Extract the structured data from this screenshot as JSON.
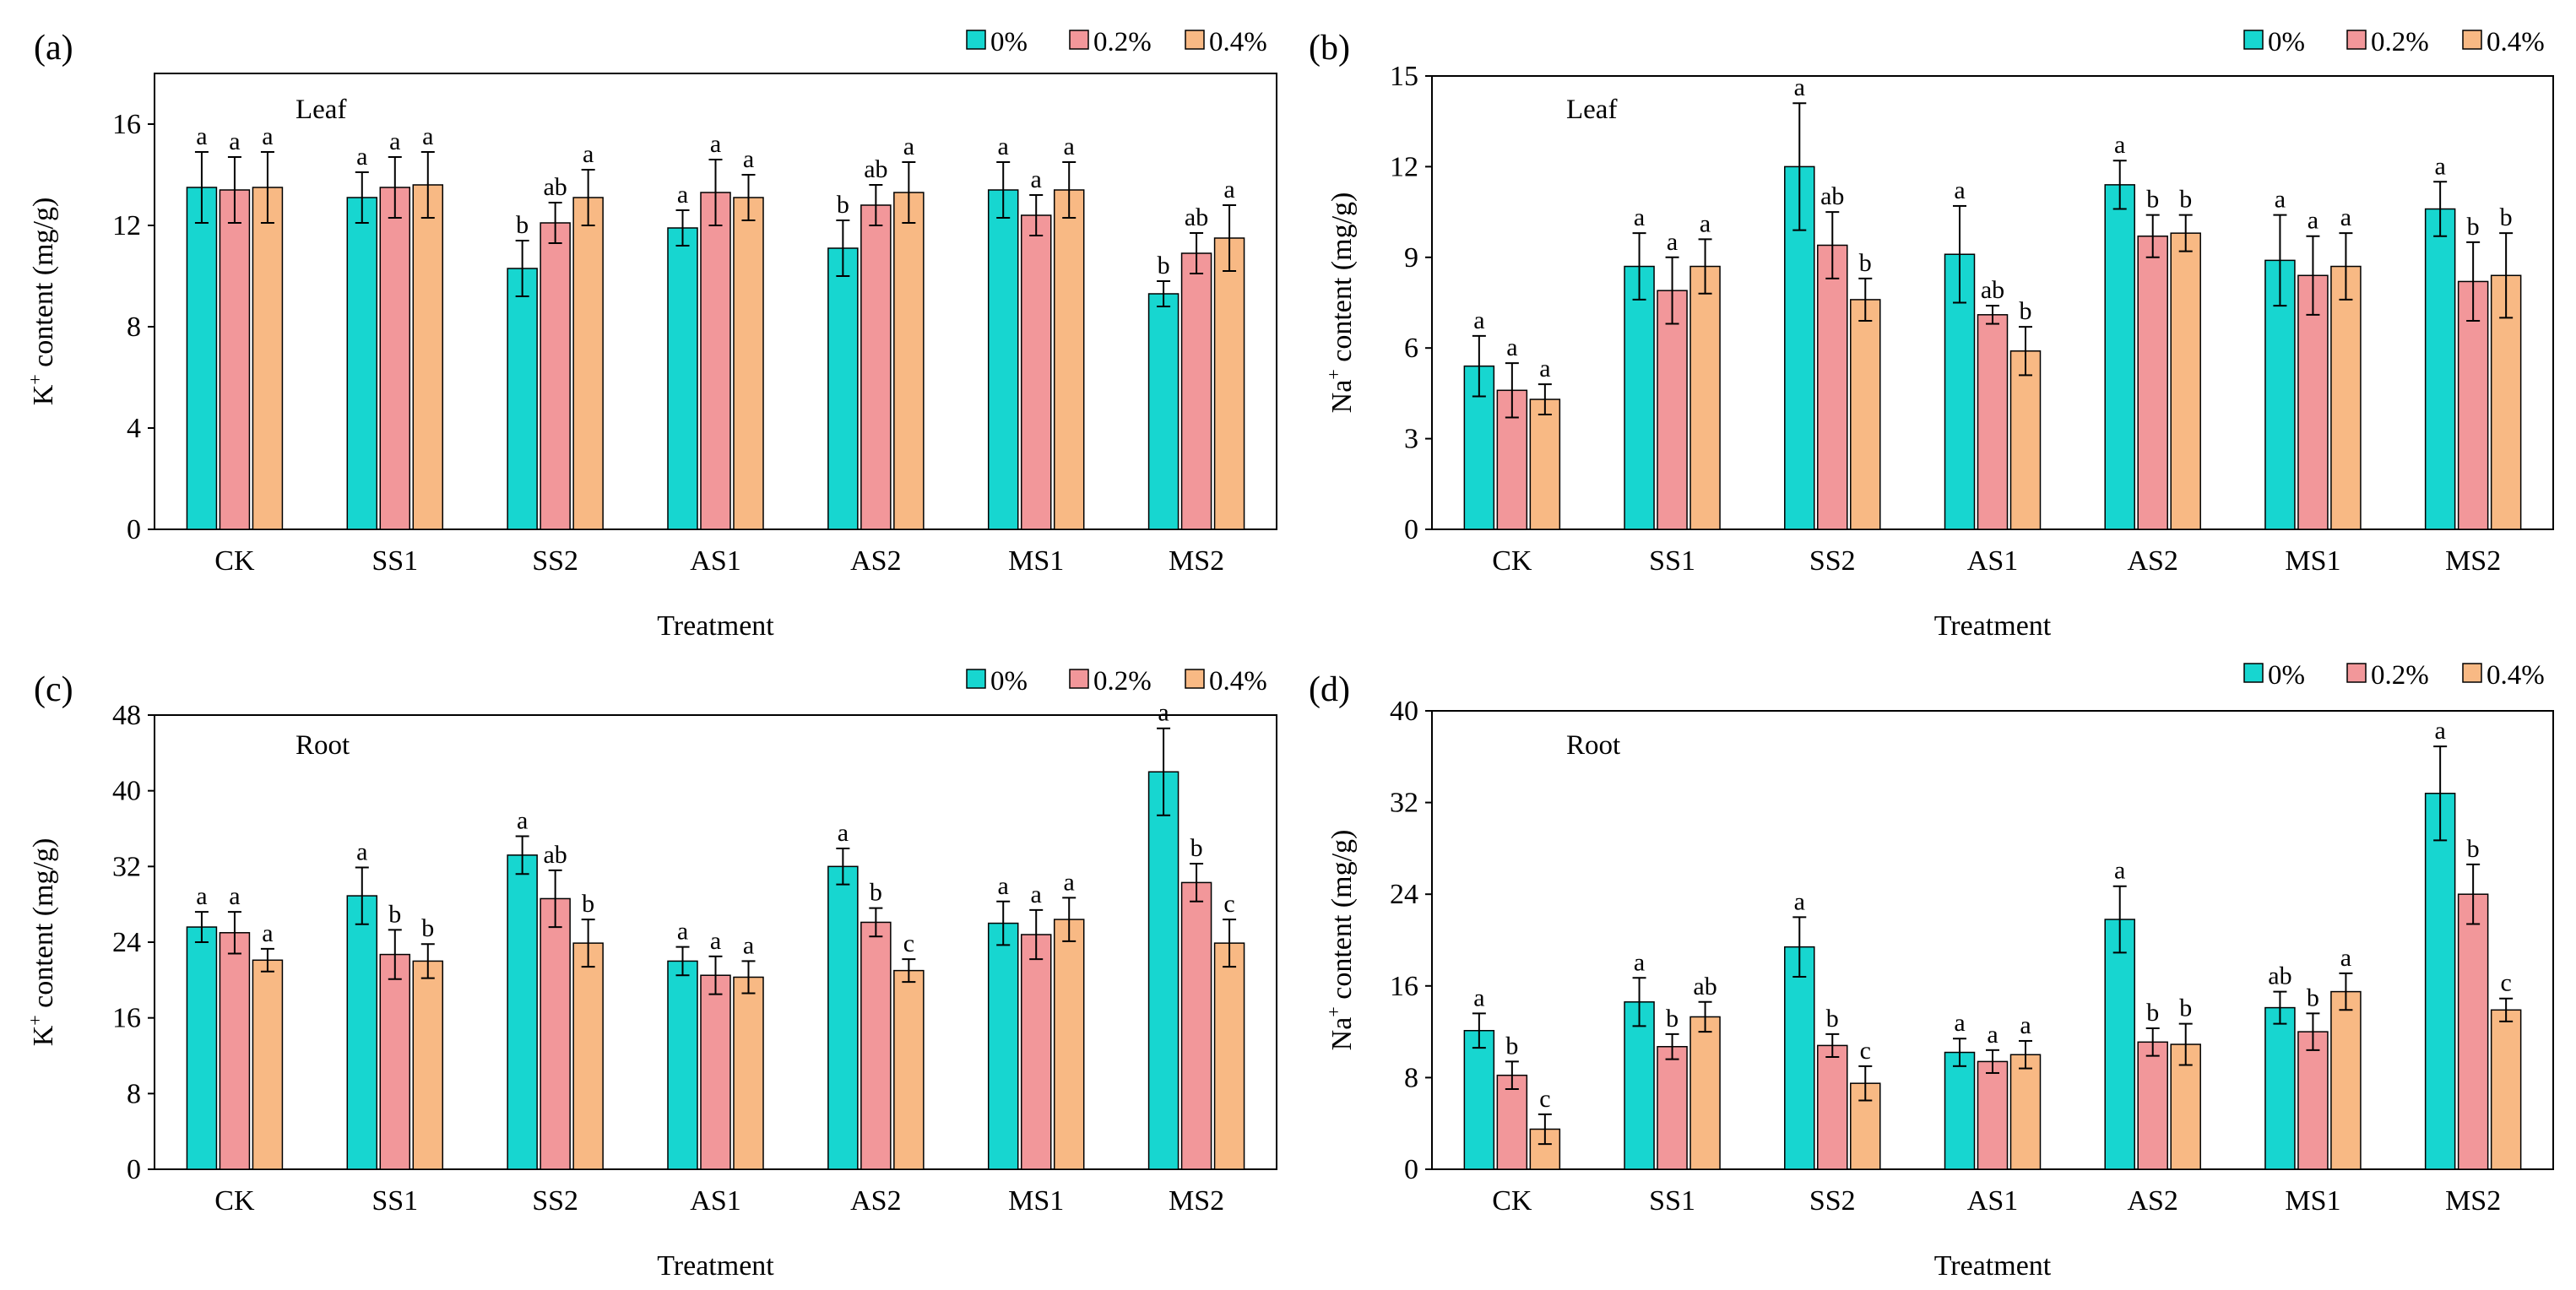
{
  "figure": {
    "legend_labels": [
      "0%",
      "0.2%",
      "0.4%"
    ],
    "colors": [
      "#17D6D0",
      "#F2979A",
      "#F8B984"
    ],
    "panels": [
      "a",
      "b",
      "c",
      "d"
    ]
  },
  "chart_data": [
    {
      "type": "bar",
      "panel_label": "(a)",
      "inner_label": "Leaf",
      "title": "",
      "xlabel": "Treatment",
      "ylabel_main": "K",
      "ylabel_sup": "+",
      "ylabel_rest": " content (mg/g)",
      "ylim": [
        0,
        18
      ],
      "yticks": [
        "0",
        "4",
        "8",
        "12",
        "16"
      ],
      "ytick_values": [
        0,
        4,
        8,
        12,
        16
      ],
      "legend_position": "top-right",
      "categories": [
        "CK",
        "SS1",
        "SS2",
        "AS1",
        "AS2",
        "MS1",
        "MS2"
      ],
      "series": [
        {
          "name": "0%",
          "values": [
            13.5,
            13.1,
            10.3,
            11.9,
            11.1,
            13.4,
            9.3
          ],
          "errors": [
            1.4,
            1.0,
            1.1,
            0.7,
            1.1,
            1.1,
            0.5
          ],
          "letters": [
            "a",
            "a",
            "b",
            "a",
            "b",
            "a",
            "b"
          ]
        },
        {
          "name": "0.2%",
          "values": [
            13.4,
            13.5,
            12.1,
            13.3,
            12.8,
            12.4,
            10.9
          ],
          "errors": [
            1.3,
            1.2,
            0.8,
            1.3,
            0.8,
            0.8,
            0.8
          ],
          "letters": [
            "a",
            "a",
            "ab",
            "a",
            "ab",
            "a",
            "ab"
          ]
        },
        {
          "name": "0.4%",
          "values": [
            13.5,
            13.6,
            13.1,
            13.1,
            13.3,
            13.4,
            11.5
          ],
          "errors": [
            1.4,
            1.3,
            1.1,
            0.9,
            1.2,
            1.1,
            1.3
          ],
          "letters": [
            "a",
            "a",
            "a",
            "a",
            "a",
            "a",
            "a"
          ]
        }
      ]
    },
    {
      "type": "bar",
      "panel_label": "(b)",
      "inner_label": "Leaf",
      "title": "",
      "xlabel": "Treatment",
      "ylabel_main": "Na",
      "ylabel_sup": "+",
      "ylabel_rest": " content (mg/g)",
      "ylim": [
        0,
        15
      ],
      "yticks": [
        "0",
        "3",
        "6",
        "9",
        "12",
        "15"
      ],
      "ytick_values": [
        0,
        3,
        6,
        9,
        12,
        15
      ],
      "legend_position": "top-right",
      "categories": [
        "CK",
        "SS1",
        "SS2",
        "AS1",
        "AS2",
        "MS1",
        "MS2"
      ],
      "series": [
        {
          "name": "0%",
          "values": [
            5.4,
            8.7,
            12.0,
            9.1,
            11.4,
            8.9,
            10.6
          ],
          "errors": [
            1.0,
            1.1,
            2.1,
            1.6,
            0.8,
            1.5,
            0.9
          ],
          "letters": [
            "a",
            "a",
            "a",
            "a",
            "a",
            "a",
            "a"
          ]
        },
        {
          "name": "0.2%",
          "values": [
            4.6,
            7.9,
            9.4,
            7.1,
            9.7,
            8.4,
            8.2
          ],
          "errors": [
            0.9,
            1.1,
            1.1,
            0.3,
            0.7,
            1.3,
            1.3
          ],
          "letters": [
            "a",
            "a",
            "ab",
            "ab",
            "b",
            "a",
            "b"
          ]
        },
        {
          "name": "0.4%",
          "values": [
            4.3,
            8.7,
            7.6,
            5.9,
            9.8,
            8.7,
            8.4
          ],
          "errors": [
            0.5,
            0.9,
            0.7,
            0.8,
            0.6,
            1.1,
            1.4
          ],
          "letters": [
            "a",
            "a",
            "b",
            "b",
            "b",
            "a",
            "b"
          ]
        }
      ]
    },
    {
      "type": "bar",
      "panel_label": "(c)",
      "inner_label": "Root",
      "title": "",
      "xlabel": "Treatment",
      "ylabel_main": "K",
      "ylabel_sup": "+",
      "ylabel_rest": " content (mg/g)",
      "ylim": [
        0,
        48
      ],
      "yticks": [
        "0",
        "8",
        "16",
        "24",
        "32",
        "40",
        "48"
      ],
      "ytick_values": [
        0,
        8,
        16,
        24,
        32,
        40,
        48
      ],
      "legend_position": "top-right",
      "categories": [
        "CK",
        "SS1",
        "SS2",
        "AS1",
        "AS2",
        "MS1",
        "MS2"
      ],
      "series": [
        {
          "name": "0%",
          "values": [
            25.6,
            28.9,
            33.2,
            22.0,
            32.0,
            26.0,
            42.0
          ],
          "errors": [
            1.6,
            3.0,
            2.0,
            1.5,
            1.9,
            2.3,
            4.6
          ],
          "letters": [
            "a",
            "a",
            "a",
            "a",
            "a",
            "a",
            "a"
          ]
        },
        {
          "name": "0.2%",
          "values": [
            25.0,
            22.7,
            28.6,
            20.5,
            26.1,
            24.8,
            30.3
          ],
          "errors": [
            2.2,
            2.6,
            3.0,
            2.0,
            1.5,
            2.6,
            2.0
          ],
          "letters": [
            "a",
            "b",
            "ab",
            "a",
            "b",
            "a",
            "b"
          ]
        },
        {
          "name": "0.4%",
          "values": [
            22.1,
            22.0,
            23.9,
            20.3,
            21.0,
            26.4,
            23.9
          ],
          "errors": [
            1.2,
            1.8,
            2.5,
            1.7,
            1.2,
            2.3,
            2.5
          ],
          "letters": [
            "a",
            "b",
            "b",
            "a",
            "c",
            "a",
            "c"
          ]
        }
      ]
    },
    {
      "type": "bar",
      "panel_label": "(d)",
      "inner_label": "Root",
      "title": "",
      "xlabel": "Treatment",
      "ylabel_main": "Na",
      "ylabel_sup": "+",
      "ylabel_rest": " content (mg/g)",
      "ylim": [
        0,
        40
      ],
      "yticks": [
        "0",
        "8",
        "16",
        "24",
        "32",
        "40"
      ],
      "ytick_values": [
        0,
        8,
        16,
        24,
        32,
        40
      ],
      "legend_position": "top-right",
      "categories": [
        "CK",
        "SS1",
        "SS2",
        "AS1",
        "AS2",
        "MS1",
        "MS2"
      ],
      "series": [
        {
          "name": "0%",
          "values": [
            12.1,
            14.6,
            19.4,
            10.2,
            21.8,
            14.1,
            32.8
          ],
          "errors": [
            1.5,
            2.1,
            2.6,
            1.2,
            2.9,
            1.4,
            4.1
          ],
          "letters": [
            "a",
            "a",
            "a",
            "a",
            "a",
            "ab",
            "a"
          ]
        },
        {
          "name": "0.2%",
          "values": [
            8.2,
            10.7,
            10.8,
            9.4,
            11.1,
            12.0,
            24.0
          ],
          "errors": [
            1.2,
            1.1,
            1.0,
            1.0,
            1.2,
            1.6,
            2.6
          ],
          "letters": [
            "b",
            "b",
            "b",
            "a",
            "b",
            "b",
            "b"
          ]
        },
        {
          "name": "0.4%",
          "values": [
            3.5,
            13.3,
            7.5,
            10.0,
            10.9,
            15.5,
            13.9
          ],
          "errors": [
            1.3,
            1.3,
            1.5,
            1.2,
            1.8,
            1.6,
            1.0
          ],
          "letters": [
            "c",
            "ab",
            "c",
            "a",
            "b",
            "a",
            "c"
          ]
        }
      ]
    }
  ]
}
